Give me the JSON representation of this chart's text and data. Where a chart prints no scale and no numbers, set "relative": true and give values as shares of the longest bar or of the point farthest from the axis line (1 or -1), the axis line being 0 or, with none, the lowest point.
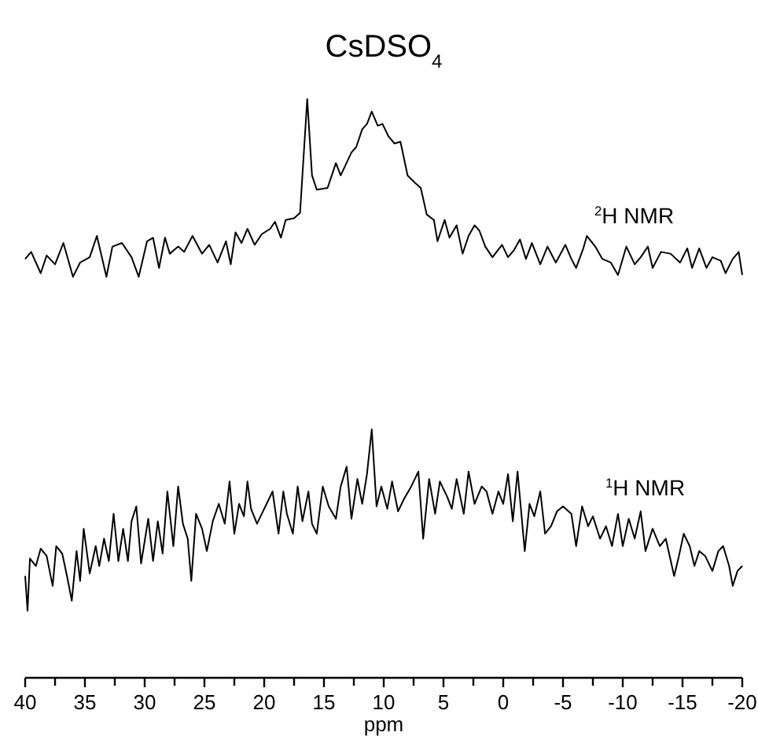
{
  "chart_data": [
    {
      "type": "line",
      "title": "CsDSO$_{4}$",
      "relative": true,
      "xlim": [
        40,
        -20
      ],
      "tick_labels": false,
      "series": [
        {
          "name": "$^{2}$H NMR",
          "color": "#000000",
          "x": [
            40.0,
            39.5,
            38.7,
            38.2,
            37.5,
            36.8,
            36.0,
            35.4,
            34.6,
            34.0,
            33.2,
            32.7,
            31.9,
            31.1,
            30.5,
            29.8,
            29.3,
            28.8,
            28.3,
            27.9,
            27.2,
            26.7,
            26.0,
            25.2,
            24.6,
            23.9,
            23.2,
            22.8,
            22.4,
            21.9,
            21.4,
            20.8,
            20.2,
            19.5,
            19.1,
            18.6,
            18.2,
            17.5,
            17.0,
            16.4,
            16.0,
            15.6,
            14.7,
            14.0,
            13.6,
            12.7,
            12.3,
            11.8,
            11.4,
            11.0,
            10.5,
            10.1,
            9.6,
            9.1,
            8.6,
            8.0,
            7.4,
            6.9,
            6.4,
            5.8,
            5.5,
            4.9,
            4.5,
            3.9,
            3.4,
            2.9,
            2.4,
            2.0,
            1.5,
            0.9,
            0.1,
            -0.4,
            -0.9,
            -1.4,
            -1.9,
            -2.4,
            -3.1,
            -3.7,
            -4.4,
            -5.2,
            -5.7,
            -6.1,
            -6.7,
            -7.0,
            -7.7,
            -8.3,
            -9.0,
            -9.6,
            -10.3,
            -11.0,
            -11.5,
            -12.1,
            -12.5,
            -13.2,
            -14.0,
            -14.8,
            -15.4,
            -15.8,
            -16.4,
            -17.0,
            -17.5,
            -18.2,
            -18.6,
            -19.2,
            -19.7,
            -20.0
          ],
          "values": [
            0.1,
            0.14,
            0.02,
            0.12,
            0.07,
            0.19,
            0.0,
            0.08,
            0.11,
            0.23,
            0.0,
            0.17,
            0.19,
            0.11,
            0.0,
            0.2,
            0.22,
            0.05,
            0.22,
            0.13,
            0.17,
            0.14,
            0.23,
            0.13,
            0.18,
            0.08,
            0.2,
            0.07,
            0.25,
            0.19,
            0.27,
            0.18,
            0.24,
            0.27,
            0.31,
            0.22,
            0.32,
            0.33,
            0.36,
            1.0,
            0.57,
            0.49,
            0.5,
            0.64,
            0.57,
            0.7,
            0.73,
            0.83,
            0.86,
            0.93,
            0.85,
            0.86,
            0.79,
            0.75,
            0.76,
            0.57,
            0.53,
            0.5,
            0.35,
            0.32,
            0.2,
            0.32,
            0.22,
            0.29,
            0.13,
            0.23,
            0.29,
            0.26,
            0.17,
            0.11,
            0.18,
            0.11,
            0.15,
            0.21,
            0.1,
            0.19,
            0.07,
            0.17,
            0.08,
            0.18,
            0.1,
            0.05,
            0.16,
            0.23,
            0.17,
            0.1,
            0.08,
            0.01,
            0.17,
            0.07,
            0.11,
            0.17,
            0.05,
            0.14,
            0.13,
            0.08,
            0.16,
            0.05,
            0.16,
            0.05,
            0.11,
            0.09,
            0.02,
            0.1,
            0.14,
            0.01
          ]
        }
      ]
    },
    {
      "type": "line",
      "xlabel": "ppm",
      "relative": true,
      "xlim": [
        40,
        -20
      ],
      "xticks": [
        40,
        {
          "value": 37.5,
          "label": null
        },
        35,
        {
          "value": 32.5,
          "label": null
        },
        30,
        {
          "value": 27.5,
          "label": null
        },
        25,
        {
          "value": 22.5,
          "label": null
        },
        20,
        {
          "value": 17.5,
          "label": null
        },
        15,
        {
          "value": 12.5,
          "label": null
        },
        10,
        {
          "value": 7.5,
          "label": null
        },
        5,
        {
          "value": 2.5,
          "label": null
        },
        0,
        {
          "value": -2.5,
          "label": null
        },
        -5,
        {
          "value": -7.5,
          "label": null
        },
        -10,
        {
          "value": -12.5,
          "label": null
        },
        -15,
        {
          "value": -17.5,
          "label": null
        },
        -20
      ],
      "series": [
        {
          "name": "$^{1}$H NMR",
          "color": "#000000",
          "x": [
            40.0,
            39.8,
            39.6,
            39.1,
            38.7,
            38.2,
            37.7,
            37.4,
            36.9,
            36.5,
            36.1,
            35.7,
            35.4,
            35.1,
            34.6,
            34.1,
            33.8,
            33.4,
            33.0,
            32.6,
            32.2,
            31.8,
            31.4,
            31.1,
            30.7,
            30.3,
            29.7,
            29.3,
            28.9,
            28.5,
            28.1,
            27.6,
            27.2,
            26.8,
            26.4,
            26.1,
            25.7,
            25.2,
            24.8,
            24.3,
            23.8,
            23.3,
            22.9,
            22.5,
            22.1,
            21.7,
            21.4,
            21.1,
            20.6,
            20.2,
            19.6,
            19.3,
            18.8,
            18.4,
            18.1,
            17.6,
            17.2,
            16.8,
            16.3,
            16.0,
            15.6,
            15.1,
            14.6,
            14.0,
            13.6,
            13.1,
            12.7,
            12.2,
            11.8,
            11.4,
            11.0,
            10.6,
            10.2,
            9.7,
            9.3,
            8.8,
            8.3,
            7.7,
            7.1,
            6.7,
            6.2,
            5.7,
            5.3,
            4.7,
            4.3,
            3.9,
            3.3,
            2.9,
            2.4,
            1.8,
            1.4,
            0.9,
            0.4,
            0.0,
            -0.4,
            -0.8,
            -1.2,
            -1.8,
            -2.2,
            -2.6,
            -3.1,
            -3.5,
            -4.0,
            -4.5,
            -5.0,
            -5.7,
            -6.1,
            -6.6,
            -7.1,
            -7.5,
            -8.1,
            -8.6,
            -9.1,
            -9.6,
            -10.0,
            -10.5,
            -11.0,
            -11.5,
            -11.9,
            -12.5,
            -13.1,
            -13.6,
            -14.3,
            -14.7,
            -15.1,
            -15.6,
            -16.0,
            -16.4,
            -16.9,
            -17.5,
            -18.0,
            -18.4,
            -18.9,
            -19.2,
            -19.6,
            -20.0
          ],
          "values": [
            0.41,
            0.27,
            0.48,
            0.45,
            0.52,
            0.49,
            0.37,
            0.53,
            0.5,
            0.41,
            0.31,
            0.51,
            0.39,
            0.6,
            0.42,
            0.53,
            0.45,
            0.56,
            0.47,
            0.66,
            0.47,
            0.6,
            0.47,
            0.63,
            0.69,
            0.46,
            0.64,
            0.47,
            0.63,
            0.5,
            0.75,
            0.53,
            0.77,
            0.62,
            0.56,
            0.39,
            0.66,
            0.6,
            0.51,
            0.63,
            0.7,
            0.62,
            0.79,
            0.58,
            0.7,
            0.65,
            0.79,
            0.68,
            0.62,
            0.66,
            0.72,
            0.75,
            0.58,
            0.75,
            0.66,
            0.58,
            0.77,
            0.63,
            0.75,
            0.62,
            0.58,
            0.77,
            0.69,
            0.64,
            0.77,
            0.85,
            0.64,
            0.8,
            0.7,
            0.82,
            1.0,
            0.69,
            0.77,
            0.68,
            0.79,
            0.67,
            0.72,
            0.77,
            0.83,
            0.56,
            0.8,
            0.66,
            0.79,
            0.73,
            0.68,
            0.8,
            0.66,
            0.83,
            0.7,
            0.77,
            0.75,
            0.66,
            0.75,
            0.7,
            0.82,
            0.63,
            0.83,
            0.51,
            0.7,
            0.65,
            0.75,
            0.58,
            0.61,
            0.67,
            0.69,
            0.66,
            0.53,
            0.69,
            0.61,
            0.65,
            0.56,
            0.61,
            0.53,
            0.66,
            0.53,
            0.64,
            0.56,
            0.67,
            0.51,
            0.6,
            0.53,
            0.56,
            0.41,
            0.49,
            0.58,
            0.53,
            0.45,
            0.51,
            0.49,
            0.43,
            0.51,
            0.53,
            0.45,
            0.37,
            0.43,
            0.45
          ]
        }
      ]
    }
  ]
}
